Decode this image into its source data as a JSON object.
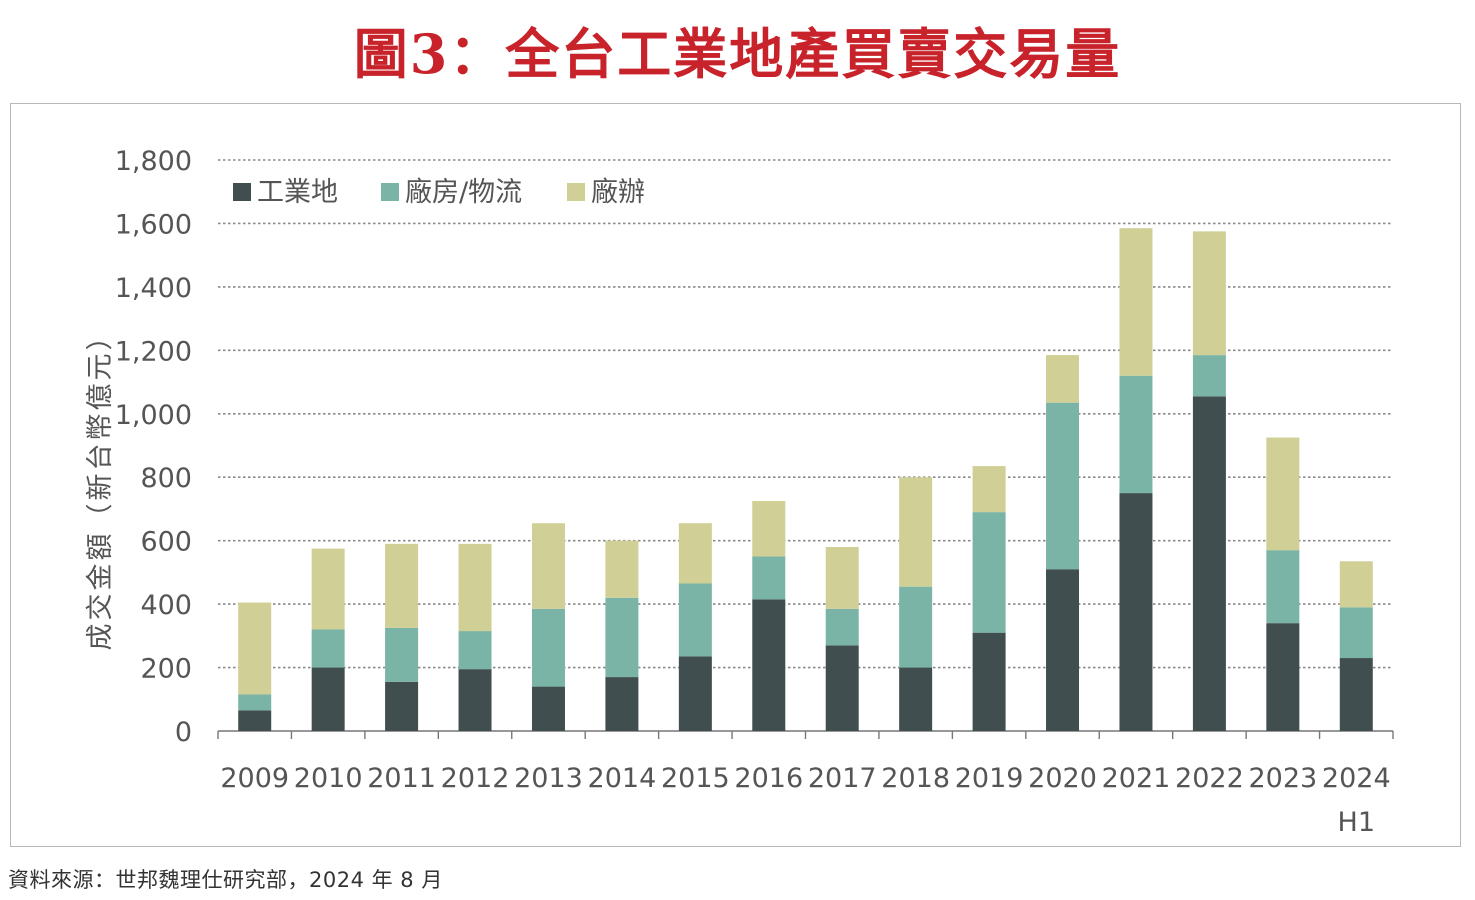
{
  "title": "圖3：全台工業地產買賣交易量",
  "source": "資料來源：世邦魏理仕研究部，2024 年 8 月",
  "colors": {
    "title": "#c8232b",
    "industrial_land": "#414e50",
    "factory_logistics": "#7ab4a6",
    "factory_office": "#cfcf96",
    "axis_text": "#555555",
    "grid": "#8a8a8a"
  },
  "chart_data": {
    "type": "bar",
    "stacked": true,
    "ylabel": "成交金額（新台幣億元）",
    "ylim": [
      0,
      1800
    ],
    "yticks": [
      0,
      200,
      400,
      600,
      800,
      1000,
      1200,
      1400,
      1600,
      1800
    ],
    "ytick_labels": [
      "0",
      "200",
      "400",
      "600",
      "800",
      "1,000",
      "1,200",
      "1,400",
      "1,600",
      "1,800"
    ],
    "categories": [
      [
        "2009"
      ],
      [
        "2010"
      ],
      [
        "2011"
      ],
      [
        "2012"
      ],
      [
        "2013"
      ],
      [
        "2014"
      ],
      [
        "2015"
      ],
      [
        "2016"
      ],
      [
        "2017"
      ],
      [
        "2018"
      ],
      [
        "2019"
      ],
      [
        "2020"
      ],
      [
        "2021"
      ],
      [
        "2022"
      ],
      [
        "2023"
      ],
      [
        "2024",
        "H1"
      ]
    ],
    "legend_position": "top-left",
    "series": [
      {
        "name": "工業地",
        "color": "#414e50",
        "values": [
          65,
          200,
          155,
          195,
          140,
          170,
          235,
          415,
          270,
          200,
          310,
          510,
          750,
          1055,
          340,
          230
        ]
      },
      {
        "name": "廠房/物流",
        "color": "#7ab4a6",
        "values": [
          50,
          120,
          170,
          120,
          245,
          250,
          230,
          135,
          115,
          255,
          380,
          525,
          370,
          130,
          230,
          160
        ]
      },
      {
        "name": "廠辦",
        "color": "#cfcf96",
        "values": [
          290,
          255,
          265,
          275,
          270,
          180,
          190,
          175,
          195,
          345,
          145,
          150,
          465,
          390,
          355,
          145
        ]
      }
    ]
  }
}
